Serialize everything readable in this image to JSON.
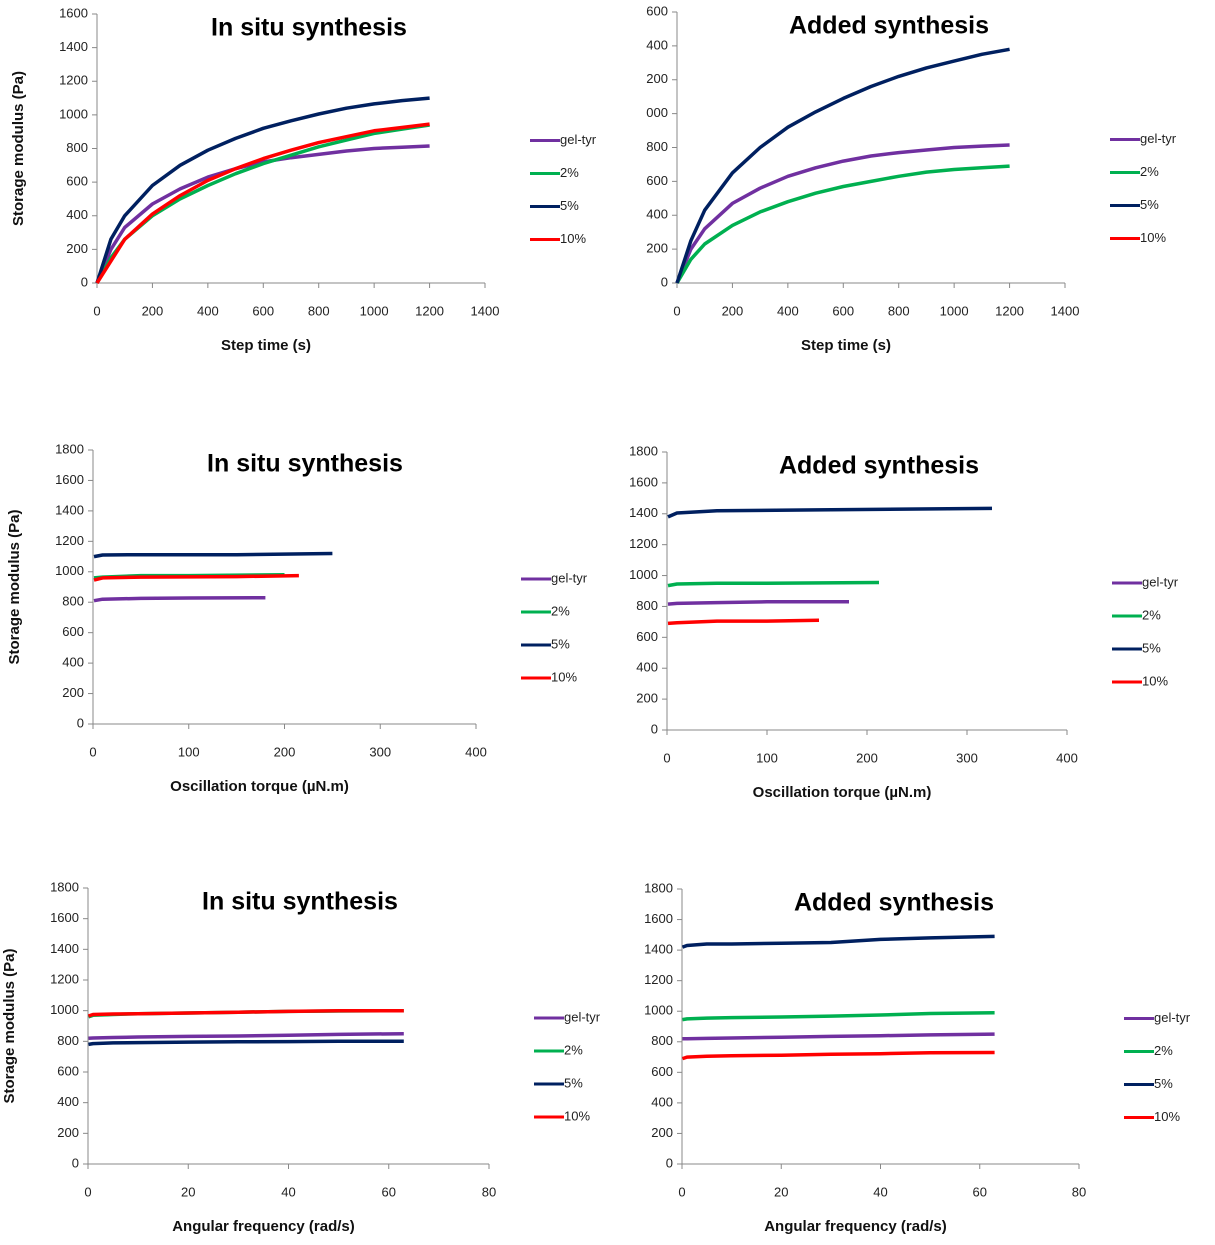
{
  "chart_data": [
    {
      "type": "line",
      "title": "In situ synthesis",
      "y_label": "Storage modulus (Pa)",
      "x_label": "Step time (s)",
      "xlim": [
        0,
        1400
      ],
      "xticks": [
        0,
        200,
        400,
        600,
        800,
        1000,
        1200,
        1400
      ],
      "ylim": [
        0,
        1600
      ],
      "yticks": [
        0,
        200,
        400,
        600,
        800,
        1000,
        1200,
        1400,
        1600
      ],
      "x": [
        0,
        50,
        100,
        200,
        300,
        400,
        500,
        600,
        700,
        800,
        900,
        1000,
        1100,
        1200
      ],
      "series": [
        {
          "name": "gel-tyr",
          "color": "#7030a0",
          "values": [
            0,
            200,
            330,
            470,
            560,
            630,
            680,
            720,
            745,
            765,
            785,
            800,
            808,
            815
          ]
        },
        {
          "name": "2%",
          "color": "#00b050",
          "values": [
            0,
            150,
            260,
            400,
            500,
            580,
            650,
            710,
            760,
            810,
            850,
            890,
            915,
            940
          ]
        },
        {
          "name": "5%",
          "color": "#002060",
          "values": [
            0,
            260,
            400,
            580,
            700,
            790,
            860,
            920,
            965,
            1005,
            1040,
            1065,
            1085,
            1100
          ]
        },
        {
          "name": "10%",
          "color": "#ff0000",
          "values": [
            0,
            130,
            260,
            410,
            520,
            610,
            680,
            740,
            790,
            835,
            870,
            905,
            925,
            945
          ]
        }
      ]
    },
    {
      "type": "line",
      "title": "Added synthesis",
      "x_label": "Step time (s)",
      "xlim": [
        0,
        1400
      ],
      "xticks": [
        0,
        200,
        400,
        600,
        800,
        1000,
        1200,
        1400
      ],
      "ylim": [
        0,
        1600
      ],
      "yticks": [
        0,
        200,
        400,
        600,
        800,
        {
          "value": 1000,
          "label": "000"
        },
        {
          "value": 1200,
          "label": "200"
        },
        {
          "value": 1400,
          "label": "400"
        },
        {
          "value": 1600,
          "label": "600"
        }
      ],
      "x": [
        0,
        50,
        100,
        200,
        300,
        400,
        500,
        600,
        700,
        800,
        900,
        1000,
        1100,
        1200
      ],
      "series": [
        {
          "name": "gel-tyr",
          "color": "#7030a0",
          "values": [
            0,
            200,
            320,
            470,
            560,
            630,
            680,
            720,
            750,
            770,
            785,
            800,
            808,
            815
          ]
        },
        {
          "name": "2%",
          "color": "#00b050",
          "values": [
            0,
            140,
            230,
            340,
            420,
            480,
            530,
            570,
            600,
            630,
            655,
            670,
            680,
            690
          ]
        },
        {
          "name": "5%",
          "color": "#002060",
          "values": [
            0,
            250,
            430,
            650,
            800,
            920,
            1010,
            1090,
            1160,
            1220,
            1270,
            1310,
            1350,
            1380
          ]
        },
        {
          "name": "10%",
          "color": "#ff0000",
          "values": [
            null,
            null,
            null,
            null,
            null,
            null,
            null,
            null,
            null,
            null,
            null,
            null,
            null,
            null
          ]
        }
      ]
    },
    {
      "type": "line",
      "title": "In situ synthesis",
      "y_label": "Storage modulus (Pa)",
      "x_label": "Oscillation torque (µN.m)",
      "xlim": [
        0,
        400
      ],
      "xticks": [
        0,
        100,
        200,
        300,
        400
      ],
      "ylim": [
        0,
        1800
      ],
      "yticks": [
        0,
        200,
        400,
        600,
        800,
        1000,
        1200,
        1400,
        1600,
        1800
      ],
      "series": [
        {
          "name": "gel-tyr",
          "color": "#7030a0",
          "x": [
            1,
            10,
            50,
            100,
            180
          ],
          "values": [
            810,
            820,
            825,
            828,
            830
          ]
        },
        {
          "name": "2%",
          "color": "#00b050",
          "x": [
            1,
            10,
            50,
            100,
            200
          ],
          "values": [
            960,
            965,
            975,
            975,
            980
          ]
        },
        {
          "name": "5%",
          "color": "#002060",
          "x": [
            1,
            10,
            50,
            150,
            250
          ],
          "values": [
            1100,
            1110,
            1112,
            1112,
            1120
          ]
        },
        {
          "name": "10%",
          "color": "#ff0000",
          "x": [
            1,
            10,
            50,
            150,
            215
          ],
          "values": [
            945,
            960,
            965,
            968,
            975
          ]
        }
      ]
    },
    {
      "type": "line",
      "title": "Added synthesis",
      "x_label": "Oscillation torque (µN.m)",
      "xlim": [
        0,
        400
      ],
      "xticks": [
        0,
        100,
        200,
        300,
        400
      ],
      "ylim": [
        0,
        1800
      ],
      "yticks": [
        0,
        200,
        400,
        600,
        800,
        1000,
        1200,
        1400,
        1600,
        1800
      ],
      "series": [
        {
          "name": "gel-tyr",
          "color": "#7030a0",
          "x": [
            1,
            10,
            50,
            100,
            182
          ],
          "values": [
            815,
            820,
            825,
            830,
            830
          ]
        },
        {
          "name": "2%",
          "color": "#00b050",
          "x": [
            1,
            10,
            50,
            100,
            212
          ],
          "values": [
            935,
            945,
            950,
            950,
            955
          ]
        },
        {
          "name": "5%",
          "color": "#002060",
          "x": [
            1,
            10,
            50,
            150,
            325
          ],
          "values": [
            1380,
            1405,
            1420,
            1425,
            1435
          ]
        },
        {
          "name": "10%",
          "color": "#ff0000",
          "x": [
            1,
            10,
            50,
            100,
            152
          ],
          "values": [
            690,
            695,
            705,
            705,
            710
          ]
        }
      ]
    },
    {
      "type": "line",
      "title": "In situ synthesis",
      "y_label": "Storage modulus (Pa)",
      "x_label": "Angular frequency (rad/s)",
      "xlim": [
        0,
        80
      ],
      "xticks": [
        0,
        20,
        40,
        60,
        80
      ],
      "ylim": [
        0,
        1800
      ],
      "yticks": [
        0,
        200,
        400,
        600,
        800,
        1000,
        1200,
        1400,
        1600,
        1800
      ],
      "x": [
        0.1,
        1,
        5,
        10,
        20,
        30,
        40,
        50,
        63
      ],
      "series": [
        {
          "name": "gel-tyr",
          "color": "#7030a0",
          "values": [
            820,
            822,
            825,
            828,
            832,
            835,
            840,
            845,
            850
          ]
        },
        {
          "name": "2%",
          "color": "#00b050",
          "values": [
            960,
            970,
            975,
            980,
            985,
            990,
            995,
            998,
            1000
          ]
        },
        {
          "name": "5%",
          "color": "#002060",
          "values": [
            780,
            785,
            790,
            792,
            795,
            797,
            798,
            800,
            800
          ]
        },
        {
          "name": "10%",
          "color": "#ff0000",
          "values": [
            965,
            975,
            978,
            980,
            985,
            990,
            995,
            1000,
            1000
          ]
        }
      ]
    },
    {
      "type": "line",
      "title": "Added synthesis",
      "x_label": "Angular frequency (rad/s)",
      "xlim": [
        0,
        80
      ],
      "xticks": [
        0,
        20,
        40,
        60,
        80
      ],
      "ylim": [
        0,
        1800
      ],
      "yticks": [
        0,
        200,
        400,
        600,
        800,
        1000,
        1200,
        1400,
        1600,
        1800
      ],
      "x": [
        0.1,
        1,
        5,
        10,
        20,
        30,
        40,
        50,
        63
      ],
      "series": [
        {
          "name": "gel-tyr",
          "color": "#7030a0",
          "values": [
            820,
            820,
            822,
            825,
            830,
            835,
            840,
            845,
            850
          ]
        },
        {
          "name": "2%",
          "color": "#00b050",
          "values": [
            945,
            950,
            955,
            958,
            962,
            968,
            975,
            985,
            990
          ]
        },
        {
          "name": "5%",
          "color": "#002060",
          "values": [
            1420,
            1430,
            1440,
            1440,
            1445,
            1450,
            1470,
            1480,
            1490
          ]
        },
        {
          "name": "10%",
          "color": "#ff0000",
          "values": [
            690,
            700,
            705,
            708,
            712,
            718,
            722,
            728,
            730
          ]
        }
      ]
    }
  ]
}
